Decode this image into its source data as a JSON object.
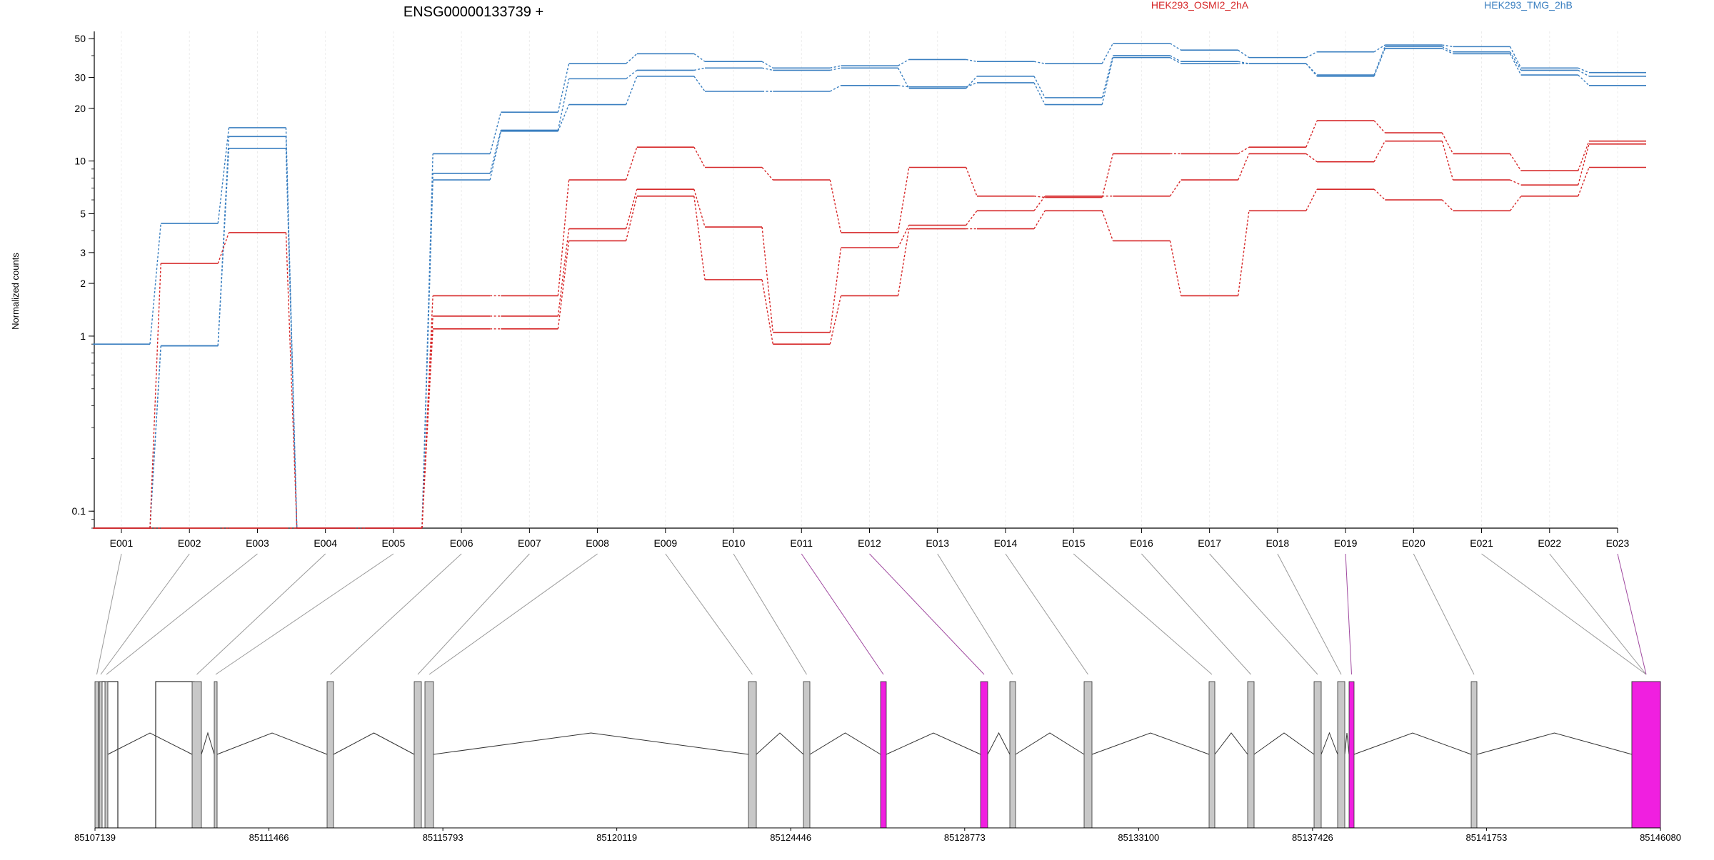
{
  "chart_data": {
    "type": "line",
    "title": "ENSG00000133739 +",
    "ylabel": "Normalized counts",
    "yscale": "log",
    "ylim": [
      0.08,
      55
    ],
    "yticks": [
      0.1,
      1,
      2,
      3,
      5,
      10,
      20,
      30,
      50
    ],
    "ytick_labels": [
      "0.1",
      "1",
      "2",
      "3",
      "5",
      "10",
      "20",
      "30",
      "50"
    ],
    "grid": "vertical dotted lines at exon ticks",
    "legend_placement": "top",
    "legend": [
      {
        "label": "HEK293_OSMI2_2hA",
        "color": "#d62728"
      },
      {
        "label": "HEK293_TMG_2hB",
        "color": "#3a7fc0"
      }
    ],
    "categories": [
      "E001",
      "E002",
      "E003",
      "E004",
      "E005",
      "E006",
      "E007",
      "E008",
      "E009",
      "E010",
      "E011",
      "E012",
      "E013",
      "E014",
      "E015",
      "E016",
      "E017",
      "E018",
      "E019",
      "E020",
      "E021",
      "E022",
      "E023"
    ],
    "series": [
      {
        "color": "#3a7fc0",
        "values": [
          0.9,
          4.4,
          15.5,
          0.08,
          0.08,
          11,
          19,
          36,
          41,
          37,
          34,
          35,
          38,
          37,
          36,
          47,
          43,
          39,
          42,
          46,
          45,
          34,
          32
        ]
      },
      {
        "color": "#3a7fc0",
        "values": [
          0.08,
          0.88,
          13.8,
          0.08,
          0.08,
          8.5,
          15,
          29.5,
          33,
          34,
          33,
          34,
          26,
          30.5,
          23,
          40,
          37,
          36,
          31,
          45,
          42,
          33,
          30.5
        ]
      },
      {
        "color": "#3a7fc0",
        "values": [
          0.08,
          0.88,
          11.8,
          0.08,
          0.08,
          7.8,
          14.8,
          21,
          30.5,
          25,
          25,
          27,
          26.5,
          28,
          21,
          39,
          36,
          36,
          30.5,
          44,
          41,
          31,
          27
        ]
      },
      {
        "color": "#d62728",
        "values": [
          0.08,
          2.6,
          3.9,
          0.08,
          0.08,
          1.7,
          1.7,
          7.8,
          12,
          9.2,
          7.8,
          3.9,
          9.2,
          6.3,
          6.2,
          11,
          11,
          12,
          17,
          14.5,
          11,
          8.8,
          13
        ]
      },
      {
        "color": "#d62728",
        "values": [
          0.08,
          0.08,
          0.08,
          0.08,
          0.08,
          1.3,
          1.3,
          4.1,
          6.9,
          4.2,
          1.05,
          3.2,
          4.3,
          5.2,
          6.3,
          6.3,
          7.8,
          11,
          9.9,
          13,
          7.8,
          7.3,
          12.5
        ]
      },
      {
        "color": "#d62728",
        "values": [
          0.08,
          0.08,
          0.08,
          0.08,
          0.08,
          1.1,
          1.1,
          3.5,
          6.3,
          2.1,
          0.9,
          1.7,
          4.1,
          4.1,
          5.2,
          3.5,
          1.7,
          5.2,
          6.9,
          6.0,
          5.2,
          6.3,
          9.2
        ]
      }
    ],
    "exons": [
      {
        "id": "E001",
        "highlight": false
      },
      {
        "id": "E002",
        "highlight": false
      },
      {
        "id": "E003",
        "highlight": false
      },
      {
        "id": "E004",
        "highlight": false
      },
      {
        "id": "E005",
        "highlight": false
      },
      {
        "id": "E006",
        "highlight": false
      },
      {
        "id": "E007",
        "highlight": false
      },
      {
        "id": "E008",
        "highlight": false
      },
      {
        "id": "E009",
        "highlight": false
      },
      {
        "id": "E010",
        "highlight": false
      },
      {
        "id": "E011",
        "highlight": true
      },
      {
        "id": "E012",
        "highlight": true
      },
      {
        "id": "E013",
        "highlight": false
      },
      {
        "id": "E014",
        "highlight": false
      },
      {
        "id": "E015",
        "highlight": false
      },
      {
        "id": "E016",
        "highlight": false
      },
      {
        "id": "E017",
        "highlight": false
      },
      {
        "id": "E018",
        "highlight": false
      },
      {
        "id": "E019",
        "highlight": true
      },
      {
        "id": "E020",
        "highlight": false
      },
      {
        "id": "E021",
        "highlight": false
      },
      {
        "id": "E022",
        "highlight": false
      },
      {
        "id": "E023",
        "highlight": true
      }
    ],
    "highlight_color": "#f01fe0",
    "exon_color": "#c8c8c8",
    "genomic_axis": {
      "ticks": [
        85107139,
        85111466,
        85115793,
        85120119,
        85124446,
        85128773,
        85133100,
        85137426,
        85141753,
        85146080
      ],
      "tick_labels": [
        "85107139",
        "85111466",
        "85115793",
        "85120119",
        "85124446",
        "85128773",
        "85133100",
        "85137426",
        "85141753",
        "85146080"
      ]
    }
  }
}
